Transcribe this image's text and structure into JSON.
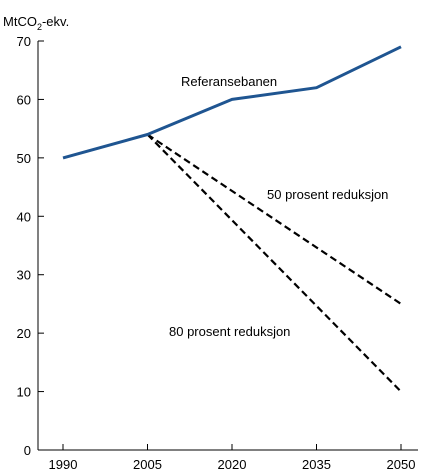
{
  "chart_data": {
    "type": "line",
    "ylabel": "MtCO",
    "ylabel_sub": "2",
    "ylabel_suffix": "-ekv.",
    "ylim": [
      0,
      70
    ],
    "yticks": [
      0,
      10,
      20,
      30,
      40,
      50,
      60,
      70
    ],
    "xticks": [
      1990,
      2005,
      2020,
      2035,
      2050
    ],
    "grid": false,
    "series": [
      {
        "name": "Referansebanen",
        "style": "solid",
        "color": "#1f5591",
        "points": [
          [
            1990,
            50
          ],
          [
            2005,
            54
          ],
          [
            2020,
            60
          ],
          [
            2035,
            62
          ],
          [
            2050,
            69
          ]
        ]
      },
      {
        "name": "50 prosent reduksjon",
        "style": "dashed",
        "color": "#000000",
        "points": [
          [
            2005,
            54
          ],
          [
            2050,
            25
          ]
        ]
      },
      {
        "name": "80 prosent reduksjon",
        "style": "dashed",
        "color": "#000000",
        "points": [
          [
            2005,
            54
          ],
          [
            2050,
            10
          ]
        ]
      }
    ]
  }
}
